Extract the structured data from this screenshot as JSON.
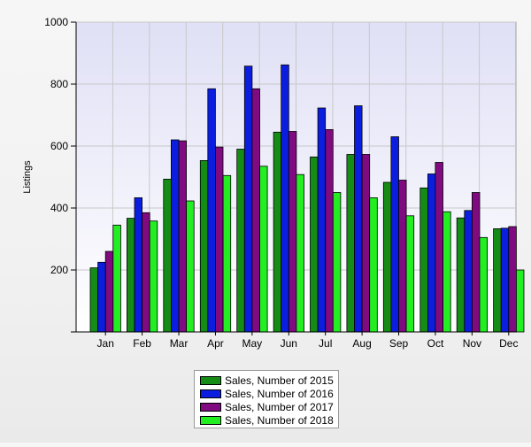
{
  "chart_data": {
    "type": "bar",
    "title": "",
    "xlabel": "",
    "ylabel": "Listings",
    "ylim": [
      0,
      1000
    ],
    "yticks": [
      200,
      400,
      600,
      800,
      1000
    ],
    "categories": [
      "Jan",
      "Feb",
      "Mar",
      "Apr",
      "May",
      "Jun",
      "Jul",
      "Aug",
      "Sep",
      "Oct",
      "Nov",
      "Dec"
    ],
    "grid": true,
    "legend_position": "bottom-center",
    "series": [
      {
        "name": "Sales, Number of 2015",
        "color": "#158c15",
        "values": [
          207,
          367,
          493,
          553,
          590,
          645,
          565,
          573,
          483,
          465,
          368,
          333
        ]
      },
      {
        "name": "Sales, Number of 2016",
        "color": "#0b1ee0",
        "values": [
          225,
          433,
          620,
          785,
          858,
          862,
          723,
          730,
          630,
          510,
          392,
          335
        ]
      },
      {
        "name": "Sales, Number of 2017",
        "color": "#800a80",
        "values": [
          260,
          385,
          617,
          597,
          785,
          647,
          653,
          573,
          490,
          547,
          450,
          340
        ]
      },
      {
        "name": "Sales, Number of 2018",
        "color": "#22ee22",
        "values": [
          345,
          358,
          423,
          505,
          535,
          508,
          450,
          433,
          375,
          388,
          305,
          200
        ]
      }
    ]
  }
}
